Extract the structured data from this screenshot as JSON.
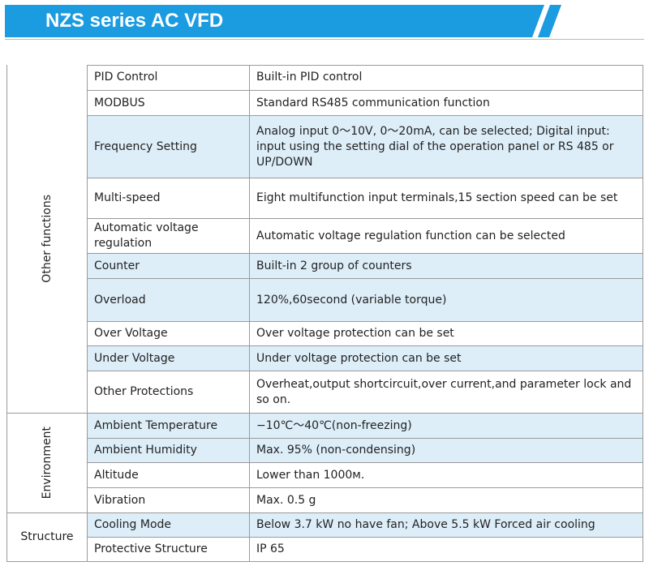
{
  "header": {
    "title": "NZS series AC VFD"
  },
  "table": {
    "groups": [
      {
        "label": "Other functions",
        "rows": [
          [
            "PID Control",
            "Built-in PID control"
          ],
          [
            "MODBUS",
            "Standard RS485 communication function"
          ],
          [
            "Frequency Setting",
            "Analog input 0～10V, 0～20mA, can be selected; Digital input: input using the setting dial of the operation panel or RS 485 or UP/DOWN"
          ],
          [
            "Multi-speed",
            "Eight multifunction input terminals,15 section speed can be set"
          ],
          [
            "Automatic voltage regulation",
            "Automatic voltage regulation function can be selected"
          ],
          [
            "Counter",
            "Built-in 2 group of counters"
          ],
          [
            "Overload",
            "120%,60second (variable torque)"
          ],
          [
            "Over Voltage",
            "Over voltage protection can be set"
          ],
          [
            "Under Voltage",
            "Under voltage protection can be set"
          ],
          [
            "Other Protections",
            "Overheat,output shortcircuit,over current,and parameter lock and so on."
          ]
        ]
      },
      {
        "label": "Environment",
        "rows": [
          [
            "Ambient Temperature",
            "−10℃～40℃(non-freezing)"
          ],
          [
            "Ambient Humidity",
            "Max. 95% (non-condensing)"
          ],
          [
            "Altitude",
            "Lower than 1000м."
          ],
          [
            "Vibration",
            "Max. 0.5 g"
          ]
        ]
      },
      {
        "label": "Structure",
        "rows": [
          [
            "Cooling Mode",
            "Below 3.7 kW no have fan; Above 5.5 kW Forced air cooling"
          ],
          [
            "Protective Structure",
            "IP 65"
          ]
        ]
      }
    ]
  }
}
